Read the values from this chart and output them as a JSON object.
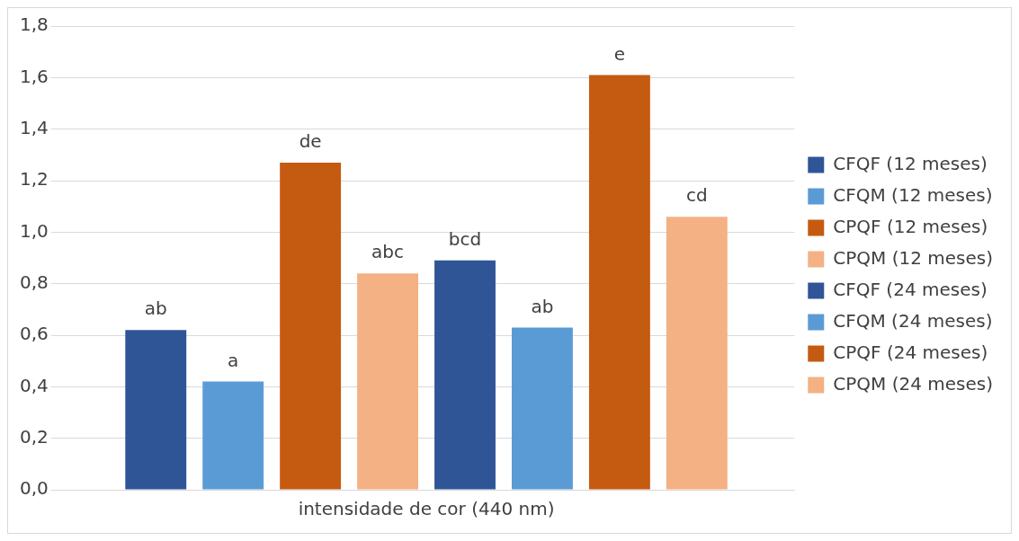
{
  "chart_data": {
    "type": "bar",
    "categories": [
      "intensidade de cor (440 nm)"
    ],
    "series": [
      {
        "name": "CFQF (12 meses)",
        "color": "#2f5597",
        "values": [
          0.62
        ],
        "value_labels": [
          "ab"
        ]
      },
      {
        "name": "CFQM (12 meses)",
        "color": "#5b9bd5",
        "values": [
          0.42
        ],
        "value_labels": [
          "a"
        ]
      },
      {
        "name": "CPQF (12 meses)",
        "color": "#c55a11",
        "values": [
          1.27
        ],
        "value_labels": [
          "de"
        ]
      },
      {
        "name": "CPQM (12 meses)",
        "color": "#f4b183",
        "values": [
          0.84
        ],
        "value_labels": [
          "abc"
        ]
      },
      {
        "name": "CFQF (24 meses)",
        "color": "#2f5597",
        "values": [
          0.89
        ],
        "value_labels": [
          "bcd"
        ]
      },
      {
        "name": "CFQM (24 meses)",
        "color": "#5b9bd5",
        "values": [
          0.63
        ],
        "value_labels": [
          "ab"
        ]
      },
      {
        "name": "CPQF (24 meses)",
        "color": "#c55a11",
        "values": [
          1.61
        ],
        "value_labels": [
          "e"
        ]
      },
      {
        "name": "CPQM (24 meses)",
        "color": "#f4b183",
        "values": [
          1.06
        ],
        "value_labels": [
          "cd"
        ]
      }
    ],
    "ylim": [
      0,
      1.8
    ],
    "yticks": [
      {
        "value": 0,
        "label": "0,0"
      },
      {
        "value": 0.2,
        "label": "0,2"
      },
      {
        "value": 0.4,
        "label": "0,4"
      },
      {
        "value": 0.6,
        "label": "0,6"
      },
      {
        "value": 0.8,
        "label": "0,8"
      },
      {
        "value": 1.0,
        "label": "1,0"
      },
      {
        "value": 1.2,
        "label": "1,2"
      },
      {
        "value": 1.4,
        "label": "1,4"
      },
      {
        "value": 1.6,
        "label": "1,6"
      },
      {
        "value": 1.8,
        "label": "1,8"
      }
    ],
    "grid": "y",
    "legend": "right"
  }
}
